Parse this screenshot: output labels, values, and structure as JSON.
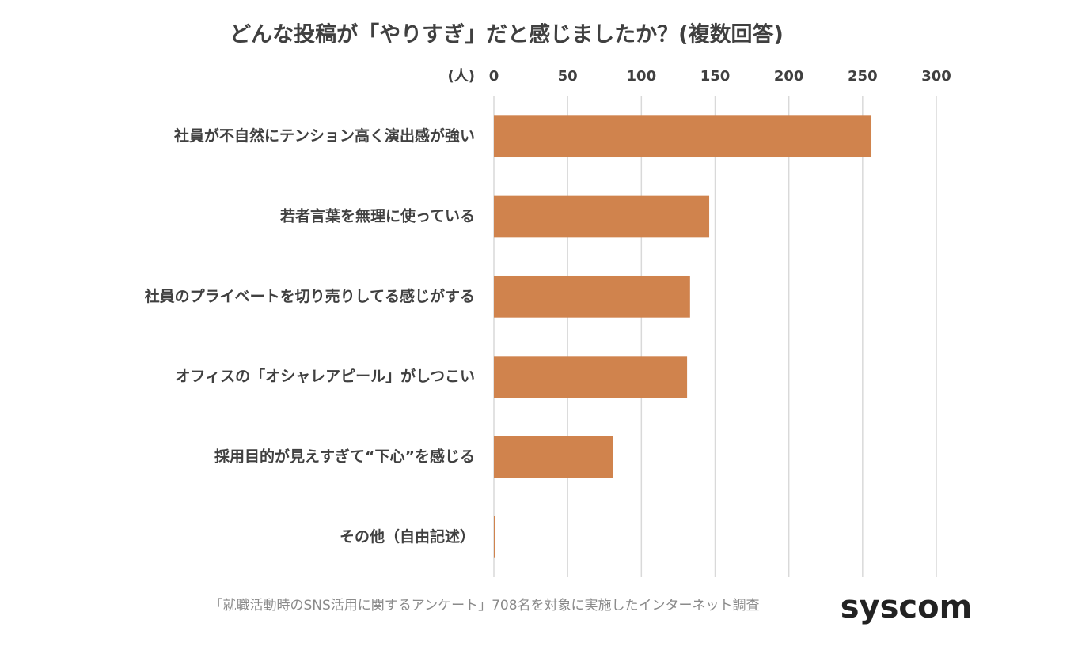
{
  "chart_data": {
    "type": "barh",
    "title": "どんな投稿が「やりすぎ」だと感じましたか？(複数回答)",
    "x_label": "(人)",
    "categories": [
      "社員が不自然にテンション高く演出感が強い",
      "若者言葉を無理に使っている",
      "社員のプライベートを切り売りしてる感じがする",
      "オフィスの「オシャレアピール」がしつこい",
      "採用目的が見えすぎて“下心”を感じる",
      "その他（自由記述）"
    ],
    "values": [
      256,
      146,
      133,
      131,
      81,
      1
    ],
    "color": "#d0834d",
    "xlim": [
      0,
      300
    ],
    "xticks": [
      0,
      50,
      100,
      150,
      200,
      250,
      300
    ],
    "grid": true,
    "footnote": "「就職活動時のSNS活用に関するアンケート」708名を対象に実施したインターネット調査",
    "logo": "syscom"
  }
}
